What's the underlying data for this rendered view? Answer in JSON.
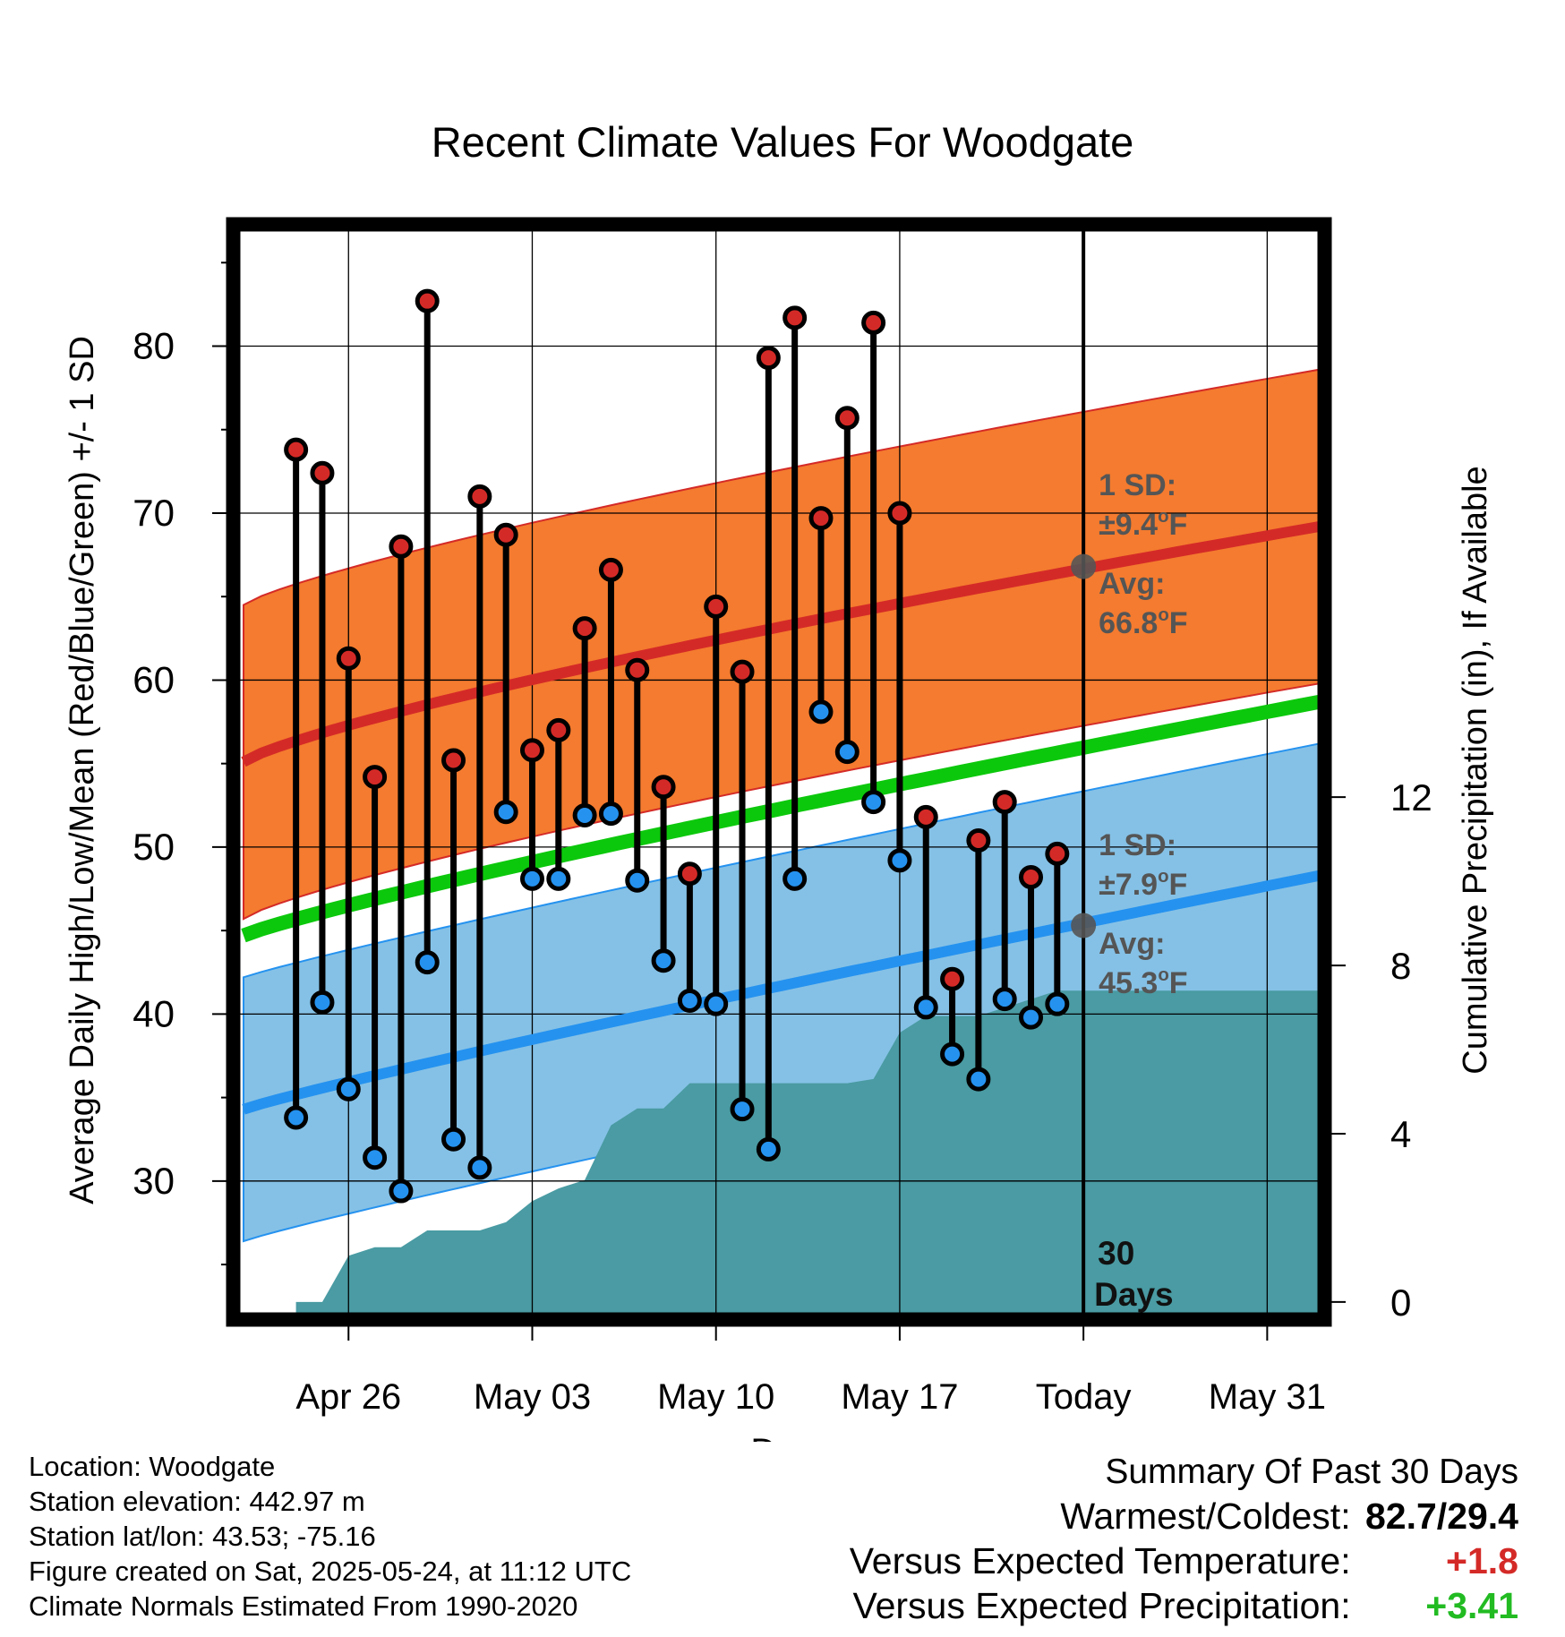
{
  "chart_data": {
    "type": "line",
    "title": "Recent Climate Values For Woodgate",
    "xlabel": "Day",
    "ylabel_left": "Average Daily High/Low/Mean (Red/Blue/Green) +/- 1 SD",
    "ylabel_right": "Cumulative Precipitation (in), If Available",
    "x_tick_labels": [
      "Apr 26",
      "May 03",
      "May 10",
      "May 17",
      "Today",
      "May 31"
    ],
    "x_tick_dates": [
      "2025-04-26",
      "2025-05-03",
      "2025-05-10",
      "2025-05-17",
      "2025-05-24",
      "2025-05-31"
    ],
    "x_range": [
      "2025-04-22",
      "2025-06-02"
    ],
    "left_ticks": [
      30,
      40,
      50,
      60,
      70,
      80
    ],
    "left_ylim": [
      22,
      87
    ],
    "right_ticks": [
      0,
      4,
      8,
      12
    ],
    "right_ylim": [
      -0.3,
      25.5
    ],
    "today_date": "2025-05-24",
    "today_label": "30 Days",
    "dates": [
      "2025-04-24",
      "2025-04-25",
      "2025-04-26",
      "2025-04-27",
      "2025-04-28",
      "2025-04-29",
      "2025-04-30",
      "2025-05-01",
      "2025-05-02",
      "2025-05-03",
      "2025-05-04",
      "2025-05-05",
      "2025-05-06",
      "2025-05-07",
      "2025-05-08",
      "2025-05-09",
      "2025-05-10",
      "2025-05-11",
      "2025-05-12",
      "2025-05-13",
      "2025-05-14",
      "2025-05-15",
      "2025-05-16",
      "2025-05-17",
      "2025-05-18",
      "2025-05-19",
      "2025-05-20",
      "2025-05-21",
      "2025-05-22",
      "2025-05-23"
    ],
    "daily_high": [
      73.8,
      72.4,
      61.3,
      54.2,
      68.0,
      82.7,
      55.2,
      71.0,
      68.7,
      55.8,
      57.0,
      63.1,
      66.6,
      60.6,
      53.6,
      48.4,
      64.4,
      60.5,
      79.3,
      81.7,
      69.7,
      75.7,
      81.4,
      70.0,
      51.8,
      42.1,
      50.4,
      52.7,
      48.2,
      49.6
    ],
    "daily_low": [
      33.8,
      40.7,
      35.5,
      31.4,
      29.4,
      43.1,
      32.5,
      30.8,
      52.1,
      48.1,
      48.1,
      51.9,
      52.0,
      48.0,
      43.2,
      40.8,
      40.6,
      34.3,
      31.9,
      48.1,
      58.1,
      55.7,
      52.7,
      49.2,
      40.4,
      37.6,
      36.1,
      40.9,
      39.8,
      40.6
    ],
    "normal_high_start": 55.1,
    "normal_high_end": 69.2,
    "normal_high_sd": 9.4,
    "normal_low_start": 34.3,
    "normal_low_end": 48.3,
    "normal_low_sd": 7.9,
    "normal_mean_start": 44.7,
    "normal_mean_end": 58.7,
    "precip_dates": [
      "2025-04-24",
      "2025-04-25",
      "2025-04-26",
      "2025-04-27",
      "2025-04-28",
      "2025-04-29",
      "2025-04-30",
      "2025-05-01",
      "2025-05-02",
      "2025-05-03",
      "2025-05-04",
      "2025-05-05",
      "2025-05-06",
      "2025-05-07",
      "2025-05-08",
      "2025-05-09",
      "2025-05-10",
      "2025-05-11",
      "2025-05-12",
      "2025-05-13",
      "2025-05-14",
      "2025-05-15",
      "2025-05-16",
      "2025-05-17",
      "2025-05-18",
      "2025-05-19",
      "2025-05-20",
      "2025-05-21",
      "2025-05-22",
      "2025-05-23",
      "2025-05-24",
      "2025-06-02"
    ],
    "cumulative_precip": [
      0.0,
      0.0,
      1.1,
      1.3,
      1.3,
      1.7,
      1.7,
      1.7,
      1.9,
      2.4,
      2.7,
      2.9,
      4.2,
      4.6,
      4.6,
      5.2,
      5.2,
      5.2,
      5.2,
      5.2,
      5.2,
      5.2,
      5.3,
      6.4,
      6.8,
      6.8,
      6.8,
      7.0,
      7.2,
      7.4,
      7.4,
      7.4
    ],
    "annotations": {
      "high_sd_label": "1 SD:",
      "high_sd_value": "±9.4",
      "high_avg_label": "Avg:",
      "high_avg_value": "66.8",
      "low_sd_label": "1 SD:",
      "low_sd_value": "±7.9",
      "low_avg_label": "Avg:",
      "low_avg_value": "45.3",
      "degree_unit": "o",
      "temp_unit": "F",
      "high_avg_temp": 66.8,
      "low_avg_temp": 45.3
    },
    "colors": {
      "high_band": "#f47b2f",
      "high_line": "#d42a27",
      "low_band": "#85c1e6",
      "low_line": "#2592ef",
      "mean_line": "#0cc80c",
      "precip": "#4a9ba3",
      "high_dot": "#d42a27",
      "low_dot": "#2592ef",
      "annotation": "#555555"
    }
  },
  "info": {
    "location": "Location: Woodgate",
    "elevation": "Station elevation: 442.97 m",
    "latlon": "Station lat/lon: 43.53; -75.16",
    "created": "Figure created on Sat, 2025-05-24, at 11:12 UTC",
    "normals": "Climate Normals Estimated From 1990-2020"
  },
  "summary": {
    "title": "Summary Of Past 30 Days",
    "warmest_label": "Warmest/Coldest:",
    "warmest_value": "82.7/29.4",
    "temp_label": "Versus Expected Temperature:",
    "temp_value": "+1.8",
    "temp_color": "#d42a27",
    "precip_label": "Versus Expected Precipitation:",
    "precip_value": "+3.41",
    "precip_color": "#22bb22"
  }
}
